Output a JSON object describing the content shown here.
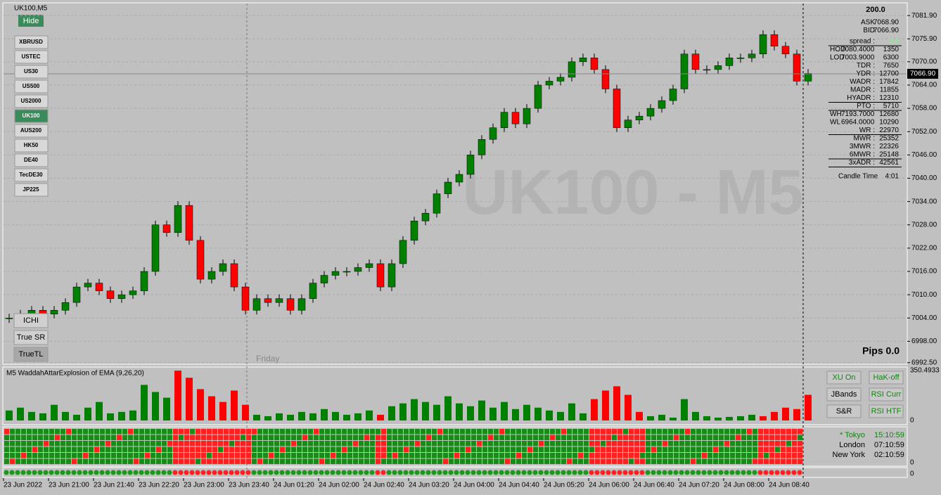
{
  "title": "UK100,M5",
  "watermark": "UK100 - M5",
  "hide_button": "Hide",
  "symbols": [
    "XBRUSD",
    "USTEC",
    "US30",
    "US500",
    "US2000",
    "UK100",
    "AUS200",
    "HK50",
    "DE40",
    "TecDE30",
    "JP225"
  ],
  "active_symbol": 5,
  "tool_buttons": [
    "ICHI",
    "True SR",
    "TrueTL"
  ],
  "day_label": "Friday",
  "pips": "Pips 0.0",
  "chart_data": {
    "type": "candlestick",
    "categories": [
      "23 Jun 2022",
      null,
      null,
      null,
      "23 Jun 21:00",
      null,
      null,
      null,
      "23 Jun 21:40",
      null,
      null,
      null,
      "23 Jun 22:20",
      null,
      null,
      null,
      "23 Jun 23:00",
      null,
      null,
      null,
      "23 Jun 23:40",
      null,
      null,
      null,
      "24 Jun 01:20",
      null,
      null,
      null,
      "24 Jun 02:00",
      null,
      null,
      null,
      "24 Jun 02:40",
      null,
      null,
      null,
      "24 Jun 03:20",
      null,
      null,
      null,
      "24 Jun 04:00",
      null,
      null,
      null,
      "24 Jun 04:40",
      null,
      null,
      null,
      "24 Jun 05:20",
      null,
      null,
      null,
      "24 Jun 06:00",
      null,
      null,
      null,
      "24 Jun 06:40",
      null,
      null,
      null,
      "24 Jun 07:20",
      null,
      null,
      null,
      "24 Jun 08:00",
      null,
      null,
      null,
      "24 Jun 08:40",
      null,
      null,
      null
    ],
    "close": [
      7004,
      7005,
      7006,
      7005,
      7006,
      7008,
      7012,
      7013,
      7011,
      7009,
      7010,
      7011,
      7016,
      7028,
      7026,
      7033,
      7024,
      7014,
      7016,
      7018,
      7012,
      7006,
      7009,
      7008,
      7009,
      7006,
      7009,
      7013,
      7015,
      7016,
      7016,
      7017,
      7018,
      7012,
      7018,
      7024,
      7029,
      7031,
      7036,
      7039,
      7041,
      7046,
      7050,
      7053,
      7057,
      7054,
      7058,
      7064,
      7065,
      7066,
      7070,
      7071,
      7068,
      7063,
      7053,
      7055,
      7056,
      7058,
      7060,
      7063,
      7072,
      7068,
      7068,
      7069,
      7071,
      7071,
      7072,
      7077,
      7074,
      7072,
      7065,
      7067
    ],
    "up_color": "#008000",
    "down_color": "#ff0000",
    "ylim": [
      6992.1,
      7085.0
    ],
    "yticks": [
      {
        "value": 7081.9,
        "label": "7081.90"
      },
      {
        "value": 7075.9,
        "label": "7075.90"
      },
      {
        "value": 7070,
        "label": "7070.00"
      },
      {
        "value": 7064,
        "label": "7064.00"
      },
      {
        "value": 7058,
        "label": "7058.00"
      },
      {
        "value": 7052,
        "label": "7052.00"
      },
      {
        "value": 7046,
        "label": "7046.00"
      },
      {
        "value": 7040,
        "label": "7040.00"
      },
      {
        "value": 7034,
        "label": "7034.00"
      },
      {
        "value": 7028,
        "label": "7028.00"
      },
      {
        "value": 7022,
        "label": "7022.00"
      },
      {
        "value": 7016,
        "label": "7016.00"
      },
      {
        "value": 7010,
        "label": "7010.00"
      },
      {
        "value": 7004,
        "label": "7004.00"
      },
      {
        "value": 6998,
        "label": "6998.00"
      },
      {
        "value": 6992.5,
        "label": "6992.50"
      }
    ],
    "current_price": {
      "value": 7066.9,
      "label": "7066.90"
    },
    "grid": true
  },
  "info": {
    "header": "200.0",
    "rows": [
      [
        "ASK",
        "7068.90"
      ],
      [
        "BID",
        "7066.90"
      ],
      [
        "spread :",
        "2.0"
      ],
      [
        "HOD",
        "7080.4000",
        "1350"
      ],
      [
        "LOD",
        "7003.9000",
        "6300"
      ],
      [
        "TDR :",
        "7650"
      ],
      [
        "YDR :",
        "12700"
      ],
      [
        "WADR :",
        "17842"
      ],
      [
        "MADR :",
        "11855"
      ],
      [
        "HYADR :",
        "12310"
      ],
      [
        "PTO :",
        "5710"
      ],
      [
        "WH",
        "7193.7000",
        "12680"
      ],
      [
        "WL",
        "6964.0000",
        "10290"
      ],
      [
        "WR :",
        "22970"
      ],
      [
        "MWR :",
        "25352"
      ],
      [
        "3MWR :",
        "22326"
      ],
      [
        "6MWR :",
        "25148"
      ],
      [
        "3xADR :",
        "42561"
      ],
      [
        "Candle Time",
        "4:01"
      ]
    ]
  },
  "indicator": {
    "title": "M5 WaddahAttarExplosion of EMA (9,26,20)",
    "values": [
      70,
      90,
      60,
      50,
      110,
      60,
      40,
      90,
      130,
      50,
      60,
      70,
      250,
      200,
      160,
      350,
      300,
      220,
      170,
      130,
      210,
      110,
      40,
      30,
      50,
      40,
      60,
      50,
      80,
      60,
      40,
      50,
      70,
      40,
      100,
      120,
      150,
      130,
      110,
      170,
      120,
      100,
      140,
      90,
      130,
      80,
      110,
      90,
      70,
      60,
      120,
      50,
      150,
      210,
      240,
      180,
      60,
      30,
      40,
      20,
      150,
      60,
      30,
      20,
      25,
      30,
      40,
      30,
      60,
      90,
      80,
      180
    ],
    "colors": [
      "#008000",
      "#008000",
      "#008000",
      "#008000",
      "#008000",
      "#008000",
      "#008000",
      "#008000",
      "#008000",
      "#008000",
      "#008000",
      "#008000",
      "#008000",
      "#008000",
      "#008000",
      "#ff0000",
      "#ff0000",
      "#ff0000",
      "#ff0000",
      "#ff0000",
      "#ff0000",
      "#ff0000",
      "#008000",
      "#008000",
      "#008000",
      "#008000",
      "#008000",
      "#008000",
      "#008000",
      "#008000",
      "#008000",
      "#008000",
      "#008000",
      "#ff0000",
      "#008000",
      "#008000",
      "#008000",
      "#008000",
      "#008000",
      "#008000",
      "#008000",
      "#008000",
      "#008000",
      "#008000",
      "#008000",
      "#008000",
      "#008000",
      "#008000",
      "#008000",
      "#008000",
      "#008000",
      "#008000",
      "#ff0000",
      "#ff0000",
      "#ff0000",
      "#ff0000",
      "#ff0000",
      "#008000",
      "#008000",
      "#008000",
      "#008000",
      "#008000",
      "#008000",
      "#008000",
      "#008000",
      "#008000",
      "#008000",
      "#ff0000",
      "#ff0000",
      "#ff0000",
      "#ff0000",
      "#ff0000"
    ],
    "ylim": [
      0,
      350.4933
    ],
    "yticks": [
      0,
      350.4933
    ]
  },
  "panel_zero": "0",
  "panel_buttons": [
    "XU On",
    "HaK-off",
    "JBands",
    "RSI Curr",
    "S&R",
    "RSI HTF"
  ],
  "sessions": [
    [
      "* Tokyo",
      "15:10:59"
    ],
    [
      "London",
      "07:10:59"
    ],
    [
      "New York",
      "02:10:59"
    ]
  ]
}
